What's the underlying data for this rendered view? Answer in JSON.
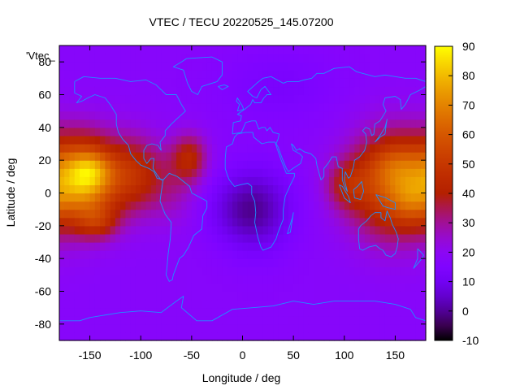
{
  "chart_data": {
    "type": "heatmap",
    "title": "VTEC / TECU 20220525_145.07200",
    "xlabel": "Longitude / deg",
    "ylabel": "Latitude / deg",
    "key_label": "'Vtec_",
    "xlim": [
      -180,
      180
    ],
    "ylim": [
      -90,
      90
    ],
    "x_ticks": [
      -150,
      -100,
      -50,
      0,
      50,
      100,
      150
    ],
    "y_ticks": [
      -80,
      -60,
      -40,
      -20,
      0,
      20,
      40,
      60,
      80
    ],
    "x_tick_labels": [
      "-150",
      "-100",
      "-50",
      "0",
      "50",
      "100",
      "150"
    ],
    "y_tick_labels": [
      "-80",
      "-60",
      "-40",
      "-20",
      "0",
      "20",
      "40",
      "60",
      "80"
    ],
    "cblim": [
      -10,
      90
    ],
    "cb_ticks": [
      -10,
      0,
      10,
      20,
      30,
      40,
      50,
      60,
      70,
      80,
      90
    ],
    "cb_tick_labels": [
      "-10",
      "0",
      "10",
      "20",
      "30",
      "40",
      "50",
      "60",
      "70",
      "80",
      "90"
    ],
    "colormap": "gnuplot-pm3d-default",
    "coastline_color": "#1e90ff",
    "grid_step_deg": 5,
    "field_features": [
      {
        "lon": -155,
        "lat": 8,
        "slon": 25,
        "slat": 18,
        "amp": 54
      },
      {
        "lon": -148,
        "lat": 14,
        "slon": 14,
        "slat": 8,
        "amp": 14
      },
      {
        "lon": -142,
        "lat": -18,
        "slon": 14,
        "slat": 7,
        "amp": 16
      },
      {
        "lon": -105,
        "lat": 12,
        "slon": 18,
        "slat": 16,
        "amp": 22
      },
      {
        "lon": -52,
        "lat": 22,
        "slon": 12,
        "slat": 10,
        "amp": 22
      },
      {
        "lon": -70,
        "lat": 5,
        "slon": 18,
        "slat": 16,
        "amp": 10
      },
      {
        "lon": 148,
        "lat": 5,
        "slon": 30,
        "slat": 22,
        "amp": 40
      },
      {
        "lon": 150,
        "lat": 18,
        "slon": 20,
        "slat": 10,
        "amp": 10
      },
      {
        "lon": 165,
        "lat": -5,
        "slon": 14,
        "slat": 10,
        "amp": 10
      },
      {
        "lon": 102,
        "lat": 5,
        "slon": 14,
        "slat": 10,
        "amp": 16
      },
      {
        "lon": 15,
        "lat": -10,
        "slon": 24,
        "slat": 18,
        "amp": -15
      },
      {
        "lon": -10,
        "lat": -10,
        "slon": 22,
        "slat": 14,
        "amp": -6
      },
      {
        "lon": 35,
        "lat": 65,
        "slon": 40,
        "slat": 15,
        "amp": -5
      }
    ],
    "field_base": 18
  }
}
